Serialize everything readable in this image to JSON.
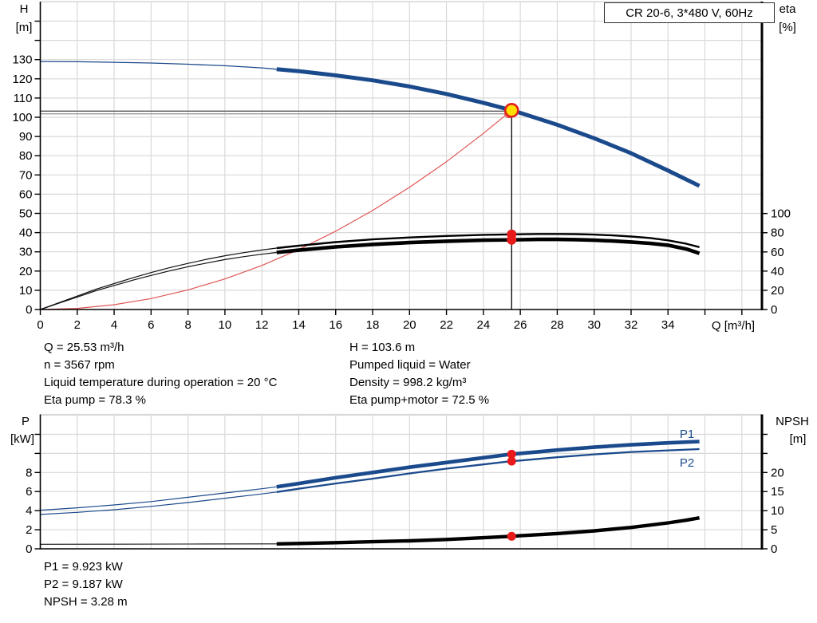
{
  "title_box": {
    "label": "CR 20-6, 3*480 V, 60Hz"
  },
  "colors": {
    "curve_blue": "#1b4a8c",
    "curve_red": "#e05555",
    "dot_red": "#e81a1a",
    "duty_yellow": "#ffdf00",
    "duty_ring_red": "#e02020",
    "grid_gray": "#d9d9d9",
    "guide_dark_gray": "#555555",
    "guide_light_gray": "#9a9a9a",
    "axis_black": "#000000"
  },
  "info_top": {
    "left": [
      "Q = 25.53 m³/h",
      "n = 3567 rpm",
      "Liquid temperature during operation = 20 °C",
      "Eta pump = 78.3 %"
    ],
    "right": [
      "H = 103.6 m",
      "Pumped liquid = Water",
      "Density = 998.2 kg/m³",
      "Eta pump+motor = 72.5 %"
    ]
  },
  "info_bottom": [
    "P1 = 9.923 kW",
    "P2 = 9.187 kW",
    "NPSH = 3.28 m"
  ],
  "duty_point": {
    "Q": 25.53,
    "H": 103.6,
    "eta_pump": 78.3,
    "eta_pump_motor": 72.5,
    "P1": 9.923,
    "P2": 9.187,
    "NPSH": 3.28
  },
  "chart_data": [
    {
      "type": "line",
      "name": "hq-eta-chart",
      "title": "CR 20-6, 3*480 V, 60Hz",
      "x_axis": {
        "label": "Q [m³/h]",
        "min": 0,
        "max": 39.1,
        "major_ticks": [
          0,
          2,
          4,
          6,
          8,
          10,
          12,
          14,
          16,
          18,
          20,
          22,
          24,
          26,
          28,
          30,
          32,
          34
        ],
        "minor_ticks": [
          36,
          38
        ],
        "grid_step": 2
      },
      "y_left": {
        "title_lines": [
          "H",
          "[m]"
        ],
        "min": 0,
        "max": 160,
        "major_ticks": [
          0,
          10,
          20,
          30,
          40,
          50,
          60,
          70,
          80,
          90,
          100,
          110,
          120,
          130
        ],
        "minor_ticks": [
          140,
          150
        ]
      },
      "y_right": {
        "title_lines": [
          "eta",
          "[%]"
        ],
        "min": 0,
        "max": 132,
        "major_ticks": [
          0,
          20,
          40,
          60,
          80,
          100
        ],
        "minor_ticks": []
      },
      "series": [
        {
          "name": "hq-curve-extension",
          "yscale": "H",
          "color": "#1b4a8c",
          "width": 1.3,
          "points": [
            [
              0,
              129
            ],
            [
              2,
              128.9
            ],
            [
              4,
              128.6
            ],
            [
              6,
              128.2
            ],
            [
              8,
              127.6
            ],
            [
              10,
              126.8
            ],
            [
              12,
              125.7
            ],
            [
              12.8,
              125.0
            ]
          ]
        },
        {
          "name": "hq-curve-main",
          "yscale": "H",
          "color": "#1b4a8c",
          "width": 5,
          "points": [
            [
              12.8,
              125.0
            ],
            [
              14,
              124.0
            ],
            [
              16,
              121.8
            ],
            [
              18,
              119.2
            ],
            [
              20,
              116.0
            ],
            [
              22,
              112.1
            ],
            [
              24,
              107.5
            ],
            [
              25.53,
              103.6
            ],
            [
              26,
              102.3
            ],
            [
              28,
              96.1
            ],
            [
              30,
              89.1
            ],
            [
              32,
              81.3
            ],
            [
              34,
              72.3
            ],
            [
              35.7,
              64.3
            ]
          ]
        },
        {
          "name": "system-curve",
          "yscale": "H",
          "color": "#e05555",
          "width": 1.2,
          "points": [
            [
              0,
              0
            ],
            [
              2,
              0.6
            ],
            [
              4,
              2.5
            ],
            [
              6,
              5.7
            ],
            [
              8,
              10.2
            ],
            [
              10,
              15.9
            ],
            [
              12,
              22.9
            ],
            [
              14,
              31.2
            ],
            [
              16,
              40.7
            ],
            [
              18,
              51.5
            ],
            [
              20,
              63.6
            ],
            [
              22,
              76.9
            ],
            [
              24,
              91.6
            ],
            [
              25.53,
              103.6
            ]
          ]
        },
        {
          "name": "eta-pump-extension",
          "yscale": "eta",
          "color": "#111111",
          "width": 1.2,
          "points": [
            [
              0,
              0
            ],
            [
              1,
              7
            ],
            [
              2,
              14
            ],
            [
              3,
              21
            ],
            [
              4,
              27
            ],
            [
              5,
              33
            ],
            [
              6,
              38.5
            ],
            [
              7,
              43.5
            ],
            [
              8,
              48
            ],
            [
              9,
              52.3
            ],
            [
              10,
              56
            ],
            [
              11,
              59.2
            ],
            [
              12,
              62
            ],
            [
              12.8,
              64
            ]
          ]
        },
        {
          "name": "eta-pump-curve",
          "yscale": "eta",
          "color": "#000000",
          "width": 2.4,
          "points": [
            [
              12.8,
              64
            ],
            [
              14,
              66.5
            ],
            [
              16,
              70.2
            ],
            [
              18,
              73
            ],
            [
              20,
              75
            ],
            [
              22,
              76.6
            ],
            [
              24,
              77.8
            ],
            [
              25.53,
              78.3
            ],
            [
              27,
              78.7
            ],
            [
              28,
              78.7
            ],
            [
              29,
              78.5
            ],
            [
              30,
              78
            ],
            [
              31,
              77.2
            ],
            [
              32,
              76
            ],
            [
              33,
              74.5
            ],
            [
              34,
              72
            ],
            [
              35,
              68.5
            ],
            [
              35.7,
              65
            ]
          ]
        },
        {
          "name": "eta-pump-motor-extension",
          "yscale": "eta",
          "color": "#111111",
          "width": 1.2,
          "points": [
            [
              0,
              0
            ],
            [
              1,
              6.5
            ],
            [
              2,
              13
            ],
            [
              3,
              19.5
            ],
            [
              4,
              25
            ],
            [
              5,
              30.5
            ],
            [
              6,
              35.5
            ],
            [
              7,
              40.2
            ],
            [
              8,
              44.5
            ],
            [
              9,
              48.4
            ],
            [
              10,
              52
            ],
            [
              11,
              55
            ],
            [
              12,
              57.6
            ],
            [
              12.8,
              59.4
            ]
          ]
        },
        {
          "name": "eta-pump-motor-curve",
          "yscale": "eta",
          "color": "#000000",
          "width": 4.6,
          "points": [
            [
              12.8,
              59.4
            ],
            [
              14,
              61.8
            ],
            [
              16,
              65.2
            ],
            [
              18,
              67.8
            ],
            [
              20,
              69.7
            ],
            [
              22,
              71.1
            ],
            [
              24,
              72.2
            ],
            [
              25.53,
              72.5
            ],
            [
              26,
              72.7
            ],
            [
              27,
              73.0
            ],
            [
              28,
              73.0
            ],
            [
              29,
              72.8
            ],
            [
              30,
              72.2
            ],
            [
              31,
              71.4
            ],
            [
              32,
              70.3
            ],
            [
              33,
              69
            ],
            [
              34,
              67
            ],
            [
              35,
              63
            ],
            [
              35.7,
              58.5
            ]
          ]
        }
      ],
      "guides": [
        {
          "type": "h",
          "yscale": "H",
          "y": 103.2,
          "x1": 0,
          "x2": 25.53,
          "color": "#555555",
          "width": 1.4,
          "name": "duty-head-guide-dark"
        },
        {
          "type": "h",
          "yscale": "H",
          "y": 101.8,
          "x1": 0,
          "x2": 25.53,
          "color": "#9a9a9a",
          "width": 1.4,
          "name": "duty-head-guide-light"
        },
        {
          "type": "v",
          "x": 25.53,
          "yscale": "H",
          "y1": 103.6,
          "y2": 0,
          "color": "#000000",
          "width": 1.3,
          "name": "duty-flow-guide"
        }
      ],
      "markers": [
        {
          "name": "eta-pump-point",
          "x": 25.53,
          "yscale": "eta",
          "y": 78.3,
          "r": 6,
          "fill": "#e81a1a",
          "stroke": "none",
          "sw": 0
        },
        {
          "name": "eta-pump-motor-point",
          "x": 25.53,
          "yscale": "eta",
          "y": 72.5,
          "r": 6,
          "fill": "#e81a1a",
          "stroke": "none",
          "sw": 0
        },
        {
          "name": "system-curve-end-marker",
          "x": 25.38,
          "yscale": "H",
          "y": 101.9,
          "r": 5,
          "fill": "none",
          "stroke": "#e05555",
          "sw": 1.4
        },
        {
          "name": "duty-point-marker",
          "x": 25.53,
          "yscale": "H",
          "y": 103.6,
          "r": 8,
          "fill": "#ffdf00",
          "stroke": "#e02020",
          "sw": 2.6
        }
      ]
    },
    {
      "type": "line",
      "name": "power-npsh-chart",
      "x_axis": {
        "label": "",
        "min": 0,
        "max": 39.1,
        "major_ticks": [],
        "minor_ticks": [],
        "grid_step": 2
      },
      "y_left": {
        "title_lines": [
          "P",
          "[kW]"
        ],
        "min": 0,
        "max": 14.1,
        "major_ticks": [
          0,
          2,
          4,
          6,
          8
        ],
        "minor_ticks": [
          10,
          12
        ]
      },
      "y_right": {
        "title_lines": [
          "NPSH",
          "[m]"
        ],
        "min": 0,
        "max": 35.2,
        "major_ticks": [
          0,
          5,
          10,
          15,
          20
        ],
        "minor_ticks": [
          25,
          30
        ]
      },
      "series_labels": [
        {
          "text": "P1"
        },
        {
          "text": "P2"
        }
      ],
      "series": [
        {
          "name": "npsh-curve-extension",
          "yscale": "NPSH",
          "color": "#111111",
          "width": 1.1,
          "points": [
            [
              0,
              1.2
            ],
            [
              4,
              1.22
            ],
            [
              8,
              1.26
            ],
            [
              12.8,
              1.3
            ]
          ]
        },
        {
          "name": "npsh-curve",
          "yscale": "NPSH",
          "color": "#000000",
          "width": 4.4,
          "points": [
            [
              12.8,
              1.3
            ],
            [
              14,
              1.4
            ],
            [
              16,
              1.6
            ],
            [
              18,
              1.85
            ],
            [
              20,
              2.1
            ],
            [
              22,
              2.45
            ],
            [
              24,
              2.9
            ],
            [
              25.53,
              3.28
            ],
            [
              26,
              3.42
            ],
            [
              28,
              4.0
            ],
            [
              30,
              4.7
            ],
            [
              32,
              5.6
            ],
            [
              34,
              6.8
            ],
            [
              35,
              7.5
            ],
            [
              35.7,
              8.1
            ]
          ]
        },
        {
          "name": "p2-curve-extension",
          "yscale": "P",
          "color": "#1b4a8c",
          "width": 1.2,
          "points": [
            [
              0,
              3.6
            ],
            [
              2,
              3.82
            ],
            [
              4,
              4.1
            ],
            [
              6,
              4.45
            ],
            [
              8,
              4.85
            ],
            [
              10,
              5.3
            ],
            [
              12,
              5.75
            ],
            [
              12.8,
              5.95
            ]
          ]
        },
        {
          "name": "p2-curve",
          "yscale": "P",
          "color": "#1b4a8c",
          "width": 2.3,
          "points": [
            [
              12.8,
              5.95
            ],
            [
              14,
              6.3
            ],
            [
              16,
              6.85
            ],
            [
              18,
              7.35
            ],
            [
              20,
              7.9
            ],
            [
              22,
              8.4
            ],
            [
              24,
              8.85
            ],
            [
              25.53,
              9.187
            ],
            [
              26,
              9.26
            ],
            [
              28,
              9.6
            ],
            [
              30,
              9.9
            ],
            [
              32,
              10.15
            ],
            [
              34,
              10.32
            ],
            [
              35.7,
              10.45
            ]
          ]
        },
        {
          "name": "p1-curve-extension",
          "yscale": "P",
          "color": "#1b4a8c",
          "width": 1.2,
          "points": [
            [
              0,
              4.05
            ],
            [
              2,
              4.3
            ],
            [
              4,
              4.6
            ],
            [
              6,
              4.95
            ],
            [
              8,
              5.4
            ],
            [
              10,
              5.85
            ],
            [
              12,
              6.3
            ],
            [
              12.8,
              6.5
            ]
          ]
        },
        {
          "name": "p1-curve",
          "yscale": "P",
          "color": "#1b4a8c",
          "width": 4.6,
          "points": [
            [
              12.8,
              6.5
            ],
            [
              14,
              6.85
            ],
            [
              16,
              7.45
            ],
            [
              18,
              8.0
            ],
            [
              20,
              8.55
            ],
            [
              22,
              9.05
            ],
            [
              24,
              9.55
            ],
            [
              25.53,
              9.923
            ],
            [
              26,
              10.0
            ],
            [
              28,
              10.35
            ],
            [
              30,
              10.65
            ],
            [
              32,
              10.9
            ],
            [
              34,
              11.1
            ],
            [
              35.7,
              11.25
            ]
          ]
        }
      ],
      "guides": [],
      "markers": [
        {
          "name": "p1-point",
          "x": 25.53,
          "yscale": "P",
          "y": 9.923,
          "r": 5.5,
          "fill": "#e81a1a",
          "stroke": "none",
          "sw": 0
        },
        {
          "name": "p2-point",
          "x": 25.53,
          "yscale": "P",
          "y": 9.187,
          "r": 5.5,
          "fill": "#e81a1a",
          "stroke": "none",
          "sw": 0
        },
        {
          "name": "npsh-point",
          "x": 25.53,
          "yscale": "NPSH",
          "y": 3.28,
          "r": 5.5,
          "fill": "#e81a1a",
          "stroke": "none",
          "sw": 0
        }
      ]
    }
  ]
}
